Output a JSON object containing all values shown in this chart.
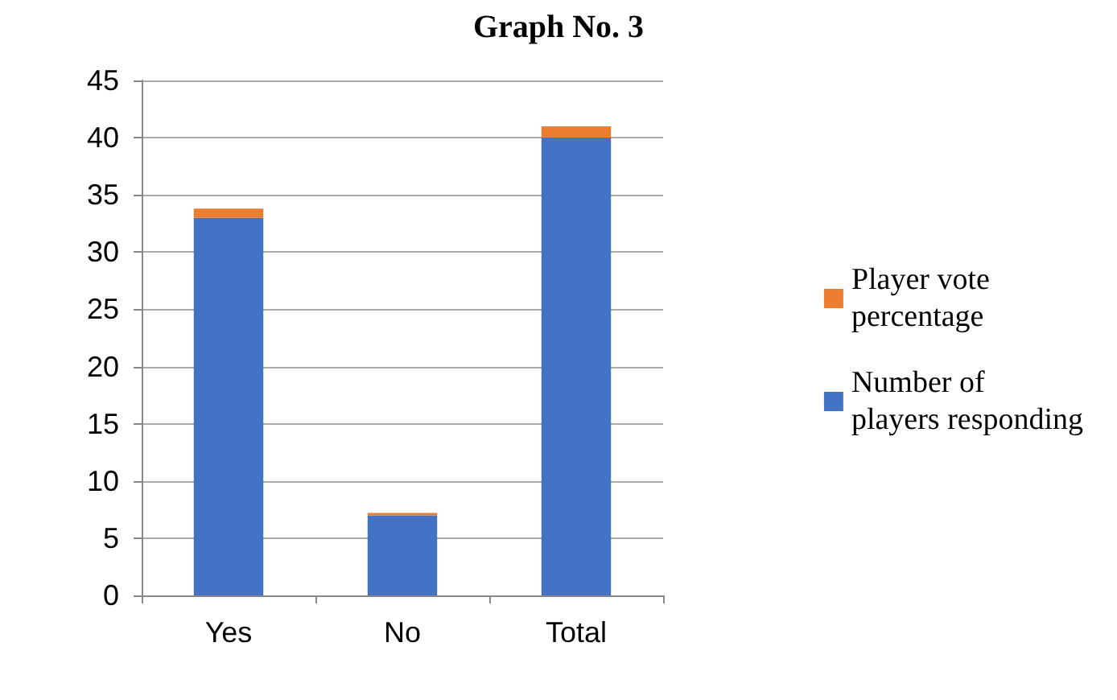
{
  "chart_data": {
    "type": "bar",
    "title": "Graph No. 3",
    "categories": [
      "Yes",
      "No",
      "Total"
    ],
    "stacked": true,
    "series": [
      {
        "name": "Number of players responding",
        "color": "#4472c4",
        "values": [
          33,
          7,
          40
        ]
      },
      {
        "name": "Player vote percentage",
        "color": "#ed7d31",
        "values": [
          0.8,
          0.2,
          1
        ]
      }
    ],
    "ylim": [
      0,
      45
    ],
    "yticks": [
      0,
      5,
      10,
      15,
      20,
      25,
      30,
      35,
      40,
      45
    ],
    "grid": "y",
    "legend": "right"
  }
}
